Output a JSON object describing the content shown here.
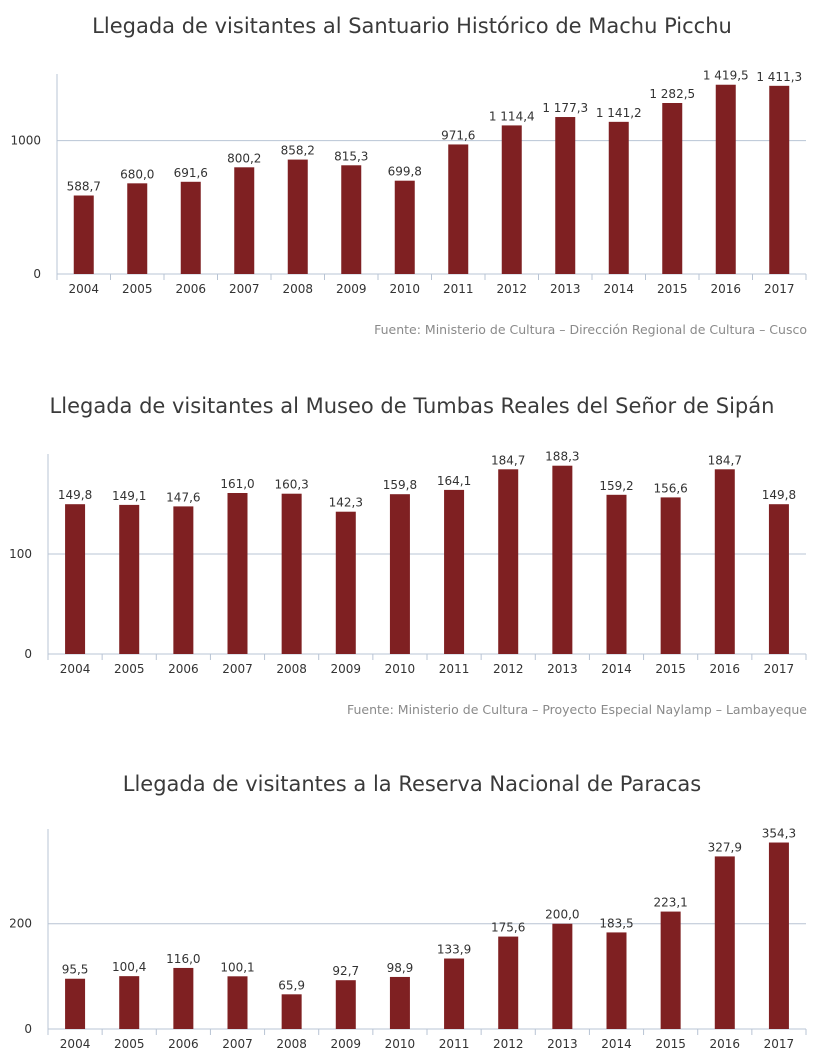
{
  "colors": {
    "bar": "#7f2022",
    "axis": "#b8c4d4",
    "grid": "#b8c4d4",
    "text": "#333333",
    "source": "#8a8a8a"
  },
  "chart_data": [
    {
      "type": "bar",
      "title": "Llegada de visitantes al Santuario Histórico de Machu Picchu",
      "categories": [
        "2004",
        "2005",
        "2006",
        "2007",
        "2008",
        "2009",
        "2010",
        "2011",
        "2012",
        "2013",
        "2014",
        "2015",
        "2016",
        "2017"
      ],
      "values": [
        588.7,
        680.0,
        691.6,
        800.2,
        858.2,
        815.3,
        699.8,
        971.6,
        1114.4,
        1177.3,
        1141.2,
        1282.5,
        1419.5,
        1411.3
      ],
      "labels": [
        "588,7",
        "680,0",
        "691,6",
        "800,2",
        "858,2",
        "815,3",
        "699,8",
        "971,6",
        "1 114,4",
        "1 177,3",
        "1 141,2",
        "1 282,5",
        "1 419,5",
        "1 411,3"
      ],
      "yticks": [
        0,
        1000
      ],
      "ytick_labels": [
        "0",
        "1000"
      ],
      "ylim": [
        0,
        1500
      ],
      "grid": true,
      "source": "Fuente: Ministerio de Cultura – Dirección Regional de Cultura – Cusco"
    },
    {
      "type": "bar",
      "title": "Llegada de visitantes al Museo de Tumbas Reales del Señor de Sipán",
      "categories": [
        "2004",
        "2005",
        "2006",
        "2007",
        "2008",
        "2009",
        "2010",
        "2011",
        "2012",
        "2013",
        "2014",
        "2015",
        "2016",
        "2017"
      ],
      "values": [
        149.8,
        149.1,
        147.6,
        161.0,
        160.3,
        142.3,
        159.8,
        164.1,
        184.7,
        188.3,
        159.2,
        156.6,
        184.7,
        149.8
      ],
      "labels": [
        "149,8",
        "149,1",
        "147,6",
        "161,0",
        "160,3",
        "142,3",
        "159,8",
        "164,1",
        "184,7",
        "188,3",
        "159,2",
        "156,6",
        "184,7",
        "149,8"
      ],
      "yticks": [
        0,
        100
      ],
      "ytick_labels": [
        "0",
        "100"
      ],
      "ylim": [
        0,
        200
      ],
      "grid": true,
      "source": "Fuente: Ministerio de Cultura – Proyecto Especial Naylamp – Lambayeque"
    },
    {
      "type": "bar",
      "title": "Llegada de visitantes a la Reserva Nacional de Paracas",
      "categories": [
        "2004",
        "2005",
        "2006",
        "2007",
        "2008",
        "2009",
        "2010",
        "2011",
        "2012",
        "2013",
        "2014",
        "2015",
        "2016",
        "2017"
      ],
      "values": [
        95.5,
        100.4,
        116.0,
        100.1,
        65.9,
        92.7,
        98.9,
        133.9,
        175.6,
        200.0,
        183.5,
        223.1,
        327.9,
        354.3
      ],
      "labels": [
        "95,5",
        "100,4",
        "116,0",
        "100,1",
        "65,9",
        "92,7",
        "98,9",
        "133,9",
        "175,6",
        "200,0",
        "183,5",
        "223,1",
        "327,9",
        "354,3"
      ],
      "yticks": [
        0,
        200
      ],
      "ytick_labels": [
        "0",
        "200"
      ],
      "ylim": [
        0,
        380
      ],
      "grid": true,
      "source": ""
    }
  ]
}
